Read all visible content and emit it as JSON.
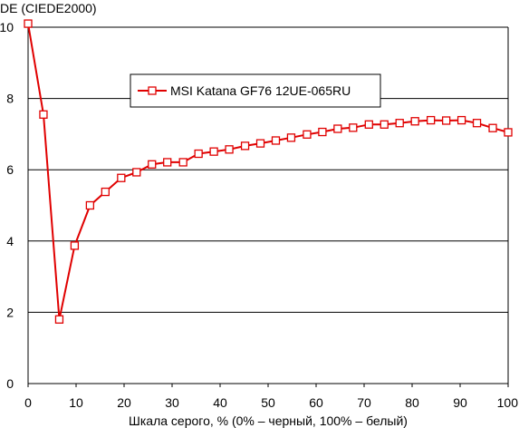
{
  "chart_data": {
    "type": "line",
    "ylabel": "DE (CIEDE2000)",
    "xlabel": "Шкала серого, % (0% – черный, 100% – белый)",
    "xlim": [
      0,
      100
    ],
    "ylim": [
      0,
      10
    ],
    "x_ticks": [
      0,
      10,
      20,
      30,
      40,
      50,
      60,
      70,
      80,
      90,
      100
    ],
    "y_ticks": [
      0,
      2,
      4,
      6,
      8,
      10
    ],
    "grid": "horizontal",
    "legend_position": "top-center",
    "series": [
      {
        "name": "MSI Katana GF76 12UE-065RU",
        "color": "#e00000",
        "marker": "open-square",
        "x": [
          0,
          3.2,
          6.5,
          9.7,
          12.9,
          16.1,
          19.4,
          22.6,
          25.8,
          29.0,
          32.3,
          35.5,
          38.7,
          41.9,
          45.2,
          48.4,
          51.6,
          54.8,
          58.1,
          61.3,
          64.5,
          67.7,
          71.0,
          74.2,
          77.4,
          80.6,
          83.9,
          87.1,
          90.3,
          93.5,
          96.8,
          100
        ],
        "y": [
          10.1,
          7.55,
          1.8,
          3.87,
          5.0,
          5.38,
          5.77,
          5.93,
          6.15,
          6.21,
          6.21,
          6.45,
          6.51,
          6.57,
          6.67,
          6.74,
          6.82,
          6.9,
          6.99,
          7.06,
          7.15,
          7.18,
          7.27,
          7.27,
          7.31,
          7.36,
          7.39,
          7.38,
          7.39,
          7.31,
          7.17,
          7.05
        ]
      }
    ]
  }
}
